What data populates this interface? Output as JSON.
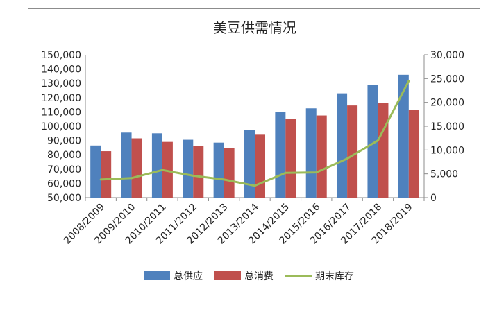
{
  "chart_data": {
    "type": "bar",
    "title": "美豆供需情况",
    "categories": [
      "2008/2009",
      "2009/2010",
      "2010/2011",
      "2011/2012",
      "2012/2013",
      "2013/2014",
      "2014/2015",
      "2015/2016",
      "2016/2017",
      "2017/2018",
      "2018/2019"
    ],
    "series": [
      {
        "name": "总供应",
        "type": "bar",
        "axis": "left",
        "color": "#4f81bd",
        "values": [
          86500,
          95500,
          95000,
          90500,
          88500,
          97500,
          110000,
          112500,
          123000,
          129000,
          136000
        ]
      },
      {
        "name": "总消费",
        "type": "bar",
        "axis": "left",
        "color": "#c0504d",
        "values": [
          82500,
          91500,
          89000,
          86000,
          84500,
          94500,
          105000,
          107500,
          114500,
          116500,
          111500
        ]
      },
      {
        "name": "期末库存",
        "type": "line",
        "axis": "right",
        "color": "#9bbb59",
        "values": [
          3800,
          4100,
          5800,
          4600,
          3800,
          2500,
          5200,
          5300,
          8200,
          12000,
          24500
        ]
      }
    ],
    "ylim": [
      50000,
      150000
    ],
    "ylim_right": [
      0,
      30000
    ],
    "yticks": [
      "50,000",
      "60,000",
      "70,000",
      "80,000",
      "90,000",
      "100,000",
      "110,000",
      "120,000",
      "130,000",
      "140,000",
      "150,000"
    ],
    "yticks_right": [
      "0",
      "5,000",
      "10,000",
      "15,000",
      "20,000",
      "25,000",
      "30,000"
    ],
    "legend_position": "bottom",
    "grid": false
  }
}
